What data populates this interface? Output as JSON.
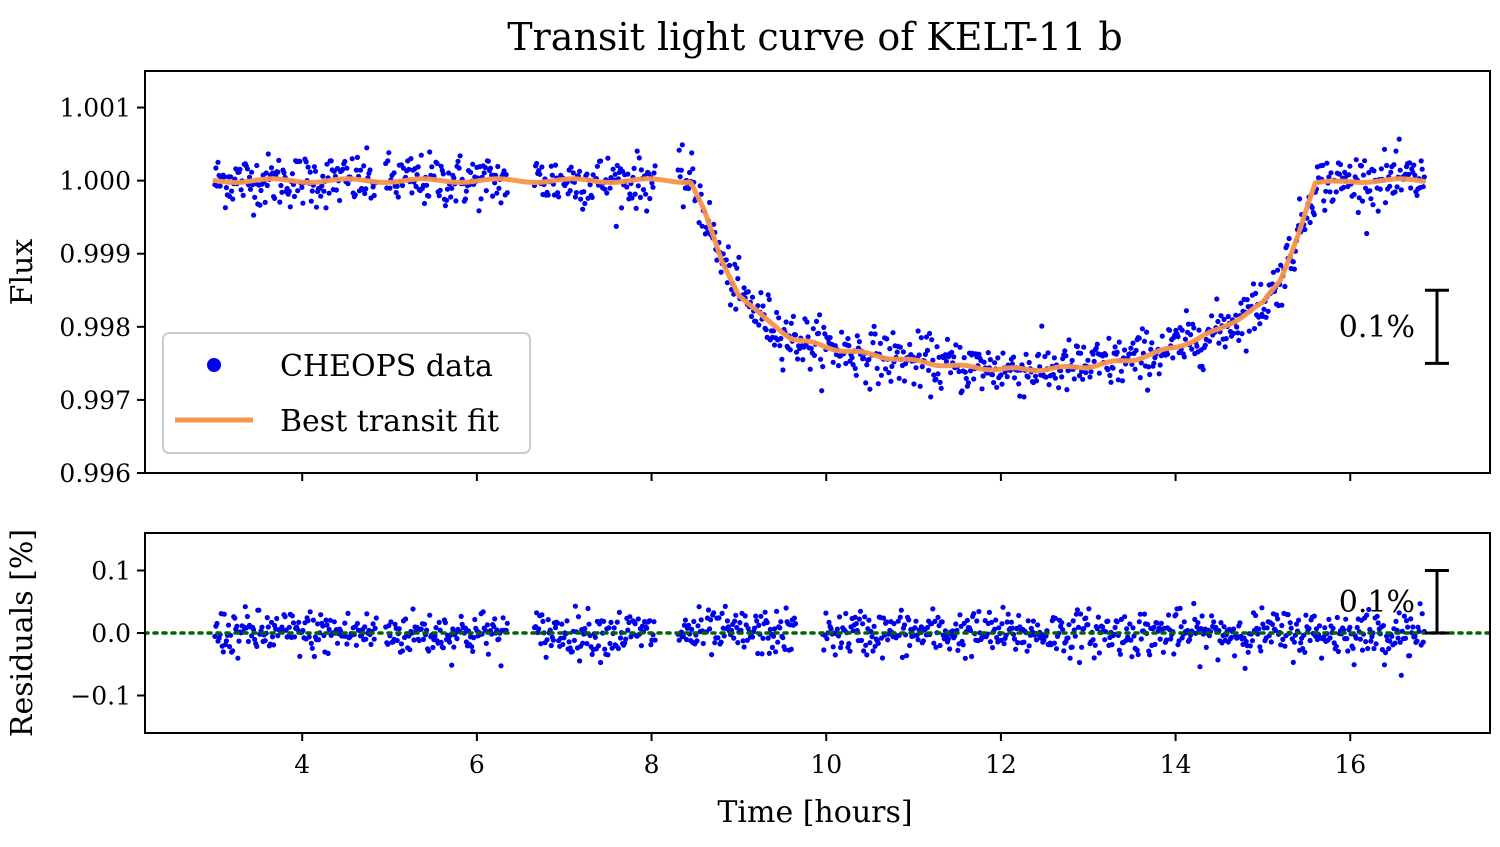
{
  "chart_data": [
    {
      "type": "scatter",
      "panel": "flux",
      "title": "Transit light curve of KELT-11 b",
      "xlabel": "",
      "ylabel": "Flux",
      "xlim": [
        2.2,
        17.6
      ],
      "ylim": [
        0.996,
        1.0015
      ],
      "xticks": [
        4,
        6,
        8,
        10,
        12,
        14,
        16
      ],
      "xtick_labels_visible": false,
      "yticks": [
        0.996,
        0.997,
        0.998,
        0.999,
        1.0,
        1.001
      ],
      "ytick_labels": [
        "0.996",
        "0.997",
        "0.998",
        "0.999",
        "1.000",
        "1.001"
      ],
      "grid": false,
      "legend_position": "lower-left",
      "data_gaps_hours": [
        [
          4.85,
          4.95
        ],
        [
          6.35,
          6.65
        ],
        [
          8.05,
          8.3
        ]
      ],
      "series": [
        {
          "name": "CHEOPS data",
          "kind": "scatter",
          "color": "#0000ee",
          "x_range": [
            3.0,
            16.85
          ],
          "scatter_std": 0.00018,
          "model": "transit"
        },
        {
          "name": "Best transit fit",
          "kind": "line",
          "color": "#f5954a",
          "x": [
            3.0,
            4.0,
            5.0,
            6.0,
            7.0,
            8.0,
            8.45,
            8.6,
            8.8,
            9.0,
            9.3,
            9.6,
            10.0,
            10.5,
            11.0,
            11.5,
            12.0,
            12.5,
            13.0,
            13.5,
            14.0,
            14.5,
            15.0,
            15.2,
            15.4,
            15.6,
            16.0,
            16.85
          ],
          "y": [
            1.0,
            1.0,
            1.0,
            1.0,
            1.0,
            1.0,
            1.0,
            0.9996,
            0.9989,
            0.99845,
            0.9981,
            0.99785,
            0.99772,
            0.99762,
            0.99753,
            0.99746,
            0.99742,
            0.99742,
            0.99746,
            0.99755,
            0.99772,
            0.99796,
            0.99832,
            0.99865,
            0.99925,
            0.99995,
            1.0,
            1.0
          ]
        }
      ],
      "scale_bar_label": "0.1%",
      "scale_bar_range": [
        0.9975,
        0.9985
      ]
    },
    {
      "type": "scatter",
      "panel": "residuals",
      "xlabel": "Time [hours]",
      "ylabel": "Residuals [%]",
      "xlim": [
        2.2,
        17.6
      ],
      "ylim": [
        -0.16,
        0.16
      ],
      "xticks": [
        4,
        6,
        8,
        10,
        12,
        14,
        16
      ],
      "xtick_labels": [
        "4",
        "6",
        "8",
        "10",
        "12",
        "14",
        "16"
      ],
      "yticks": [
        -0.1,
        0.0,
        0.1
      ],
      "ytick_labels": [
        "−0.1",
        "0.0",
        "0.1"
      ],
      "grid": false,
      "data_gaps_hours": [
        [
          4.85,
          4.95
        ],
        [
          6.35,
          6.65
        ],
        [
          8.05,
          8.3
        ],
        [
          9.65,
          9.95
        ]
      ],
      "series": [
        {
          "kind": "scatter",
          "color": "#0000ee",
          "x_range": [
            3.0,
            16.85
          ],
          "scatter_std": 0.018,
          "mean": 0.0
        },
        {
          "kind": "hline",
          "style": "dotted",
          "color": "#006400",
          "y": 0.0
        }
      ],
      "scale_bar_label": "0.1%",
      "scale_bar_range": [
        0.0,
        0.1
      ]
    }
  ]
}
